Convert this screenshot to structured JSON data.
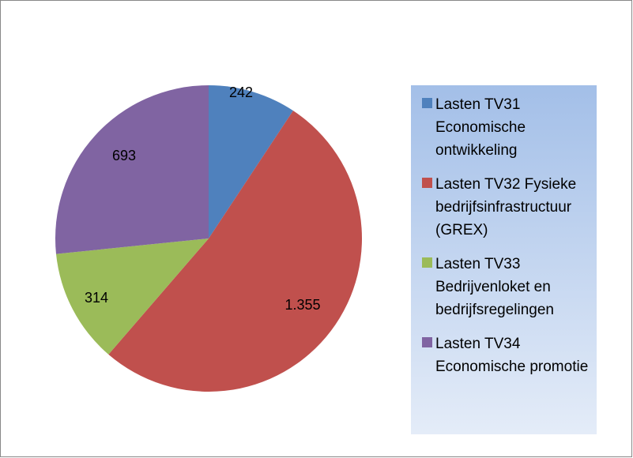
{
  "chart_data": {
    "type": "pie",
    "categories": [
      "Lasten TV31 Economische ontwikkeling",
      "Lasten TV32 Fysieke bedrijfsinfrastructuur (GREX)",
      "Lasten TV33 Bedrijvenloket en bedrijfsregelingen",
      "Lasten TV34 Economische promotie"
    ],
    "values": [
      242,
      1355,
      314,
      693
    ],
    "value_labels": [
      "242",
      "1.355",
      "314",
      "693"
    ],
    "colors": [
      "#4f81bd",
      "#c0504d",
      "#9bbb59",
      "#8064a2"
    ],
    "legend": "right"
  }
}
